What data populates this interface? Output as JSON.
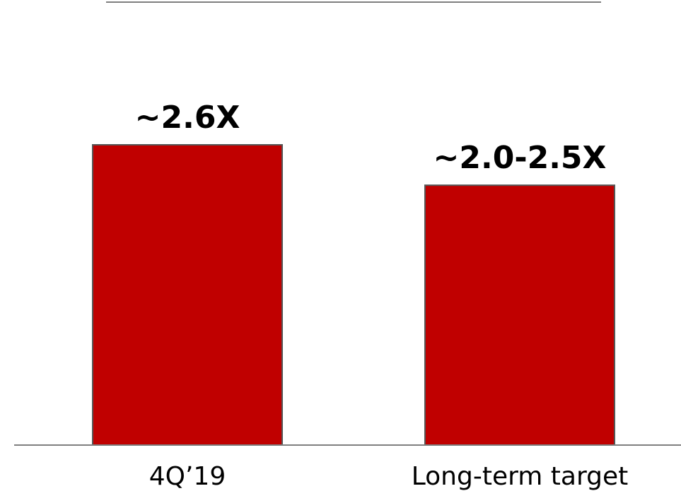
{
  "chart_data": {
    "type": "bar",
    "categories": [
      "4Q’19",
      "Long-term target"
    ],
    "values": [
      2.6,
      2.25
    ],
    "data_labels": [
      "~2.6X",
      "~2.0-2.5X"
    ],
    "title": "",
    "xlabel": "",
    "ylabel": "",
    "ylim": [
      0,
      2.6
    ],
    "grid": false,
    "legend": "none",
    "colors": {
      "bar": "#c00000",
      "bar_edge": "#555555",
      "axis": "#7f7f7f"
    }
  }
}
